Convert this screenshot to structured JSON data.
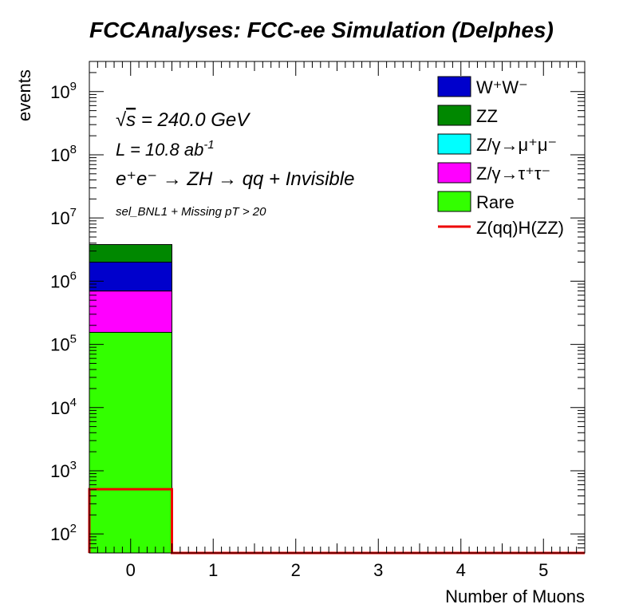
{
  "chart_data": {
    "type": "bar",
    "title": "FCCAnalyses: FCC-ee Simulation (Delphes)",
    "xlabel": "Number of Muons",
    "ylabel": "events",
    "y_scale": "log",
    "xlim": [
      -0.5,
      5.5
    ],
    "ylim": [
      50,
      3000000000
    ],
    "x_ticks": [
      "0",
      "1",
      "2",
      "3",
      "4",
      "5"
    ],
    "y_ticks": [
      {
        "base": "10",
        "exp": "2",
        "value": 100
      },
      {
        "base": "10",
        "exp": "3",
        "value": 1000
      },
      {
        "base": "10",
        "exp": "4",
        "value": 10000
      },
      {
        "base": "10",
        "exp": "5",
        "value": 100000
      },
      {
        "base": "10",
        "exp": "6",
        "value": 1000000
      },
      {
        "base": "10",
        "exp": "7",
        "value": 10000000
      },
      {
        "base": "10",
        "exp": "8",
        "value": 100000000
      },
      {
        "base": "10",
        "exp": "9",
        "value": 1000000000
      }
    ],
    "stacked": true,
    "bins": [
      0,
      1,
      2,
      3,
      4,
      5
    ],
    "series": [
      {
        "name": "Rare",
        "color": "#33ff00",
        "values": [
          155000,
          0,
          0,
          0,
          0,
          0
        ]
      },
      {
        "name": "Z/γ→τ⁺τ⁻",
        "color": "#ff00ff",
        "values": [
          545000,
          0,
          0,
          0,
          0,
          0
        ]
      },
      {
        "name": "Z/γ→μ⁺μ⁻",
        "color": "#00ffff",
        "values": [
          0,
          0,
          0,
          0,
          0,
          0
        ]
      },
      {
        "name": "W⁺W⁻",
        "color": "#0000cc",
        "values": [
          1300000,
          0,
          0,
          0,
          0,
          0
        ]
      },
      {
        "name": "ZZ",
        "color": "#008800",
        "values": [
          1800000,
          0,
          0,
          0,
          0,
          0
        ]
      }
    ],
    "signal": {
      "name": "Z(qq)H(ZZ)",
      "color": "#ee0000",
      "values": [
        510,
        0,
        0,
        0,
        0,
        0
      ]
    },
    "legend_placement": "top-right",
    "annotations": {
      "sqrt_symbol": "√",
      "sqrt_var": "s",
      "energy": " = 240.0 GeV",
      "lumi_text": "L = 10.8 ab",
      "lumi_exp": "-1",
      "process_text": "e⁺e⁻ → ZH → qq + Invisible",
      "selection": "sel_BNL1 + Missing pT > 20"
    }
  }
}
